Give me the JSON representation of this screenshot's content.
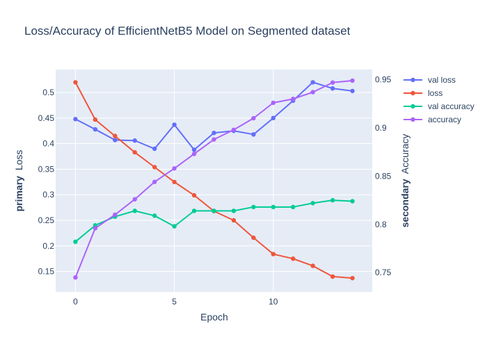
{
  "chart_data": {
    "type": "line",
    "title": "Loss/Accuracy of EfficientNetB5 Model on Segmented dataset",
    "xlabel": "Epoch",
    "ylabel_left": {
      "prefix": "primary",
      "text": "Loss"
    },
    "ylabel_right": {
      "prefix": "secondary",
      "text": "Accuracy"
    },
    "x": [
      0,
      1,
      2,
      3,
      4,
      5,
      6,
      7,
      8,
      9,
      10,
      11,
      12,
      13,
      14
    ],
    "xlim": [
      -1,
      15
    ],
    "ylim_left": [
      0.11,
      0.545
    ],
    "ylim_right": [
      0.73,
      0.9605
    ],
    "xticks": [
      0,
      5,
      10
    ],
    "yticks_left": [
      0.15,
      0.2,
      0.25,
      0.3,
      0.35,
      0.4,
      0.45,
      0.5
    ],
    "yticks_right": [
      0.75,
      0.8,
      0.85,
      0.9,
      0.95
    ],
    "grid": true,
    "legend_position": "right",
    "background": "#e5ecf6",
    "series": [
      {
        "name": "val loss",
        "axis": "left",
        "color": "#636efa",
        "values": [
          0.448,
          0.428,
          0.407,
          0.406,
          0.39,
          0.437,
          0.388,
          0.421,
          0.425,
          0.418,
          0.45,
          0.484,
          0.52,
          0.508,
          0.503
        ]
      },
      {
        "name": "loss",
        "axis": "left",
        "color": "#ef553b",
        "values": [
          0.52,
          0.447,
          0.415,
          0.383,
          0.354,
          0.325,
          0.299,
          0.268,
          0.25,
          0.216,
          0.184,
          0.175,
          0.161,
          0.14,
          0.137
        ]
      },
      {
        "name": "val accuracy",
        "axis": "right",
        "color": "#00cc96",
        "values": [
          0.782,
          0.799,
          0.808,
          0.814,
          0.809,
          0.798,
          0.814,
          0.814,
          0.814,
          0.818,
          0.818,
          0.818,
          0.822,
          0.825,
          0.824
        ]
      },
      {
        "name": "accuracy",
        "axis": "right",
        "color": "#ab63fa",
        "values": [
          0.745,
          0.796,
          0.81,
          0.826,
          0.844,
          0.858,
          0.873,
          0.888,
          0.898,
          0.91,
          0.926,
          0.93,
          0.937,
          0.947,
          0.949
        ]
      }
    ]
  }
}
